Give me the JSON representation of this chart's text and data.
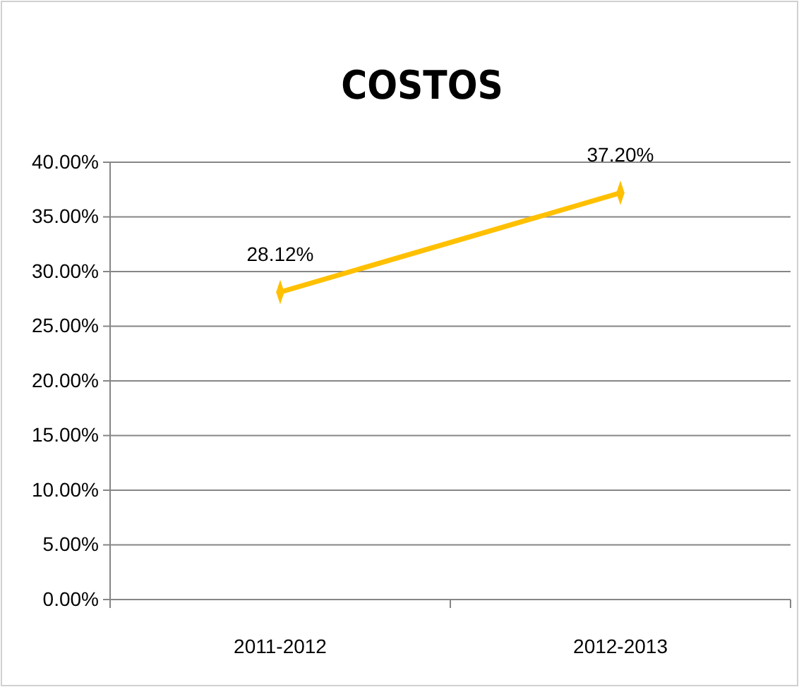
{
  "chart_data": {
    "type": "line",
    "title": "COSTOS",
    "categories": [
      "2011-2012",
      "2012-2013"
    ],
    "series": [
      {
        "color": "#ffc000",
        "values": [
          28.12,
          37.2
        ],
        "value_labels": [
          "28.12%",
          "37.20%"
        ]
      }
    ],
    "ylim": [
      0,
      40
    ],
    "yticks": [
      {
        "value": 0,
        "label": "0.00%"
      },
      {
        "value": 5,
        "label": "5.00%"
      },
      {
        "value": 10,
        "label": "10.00%"
      },
      {
        "value": 15,
        "label": "15.00%"
      },
      {
        "value": 20,
        "label": "20.00%"
      },
      {
        "value": 25,
        "label": "25.00%"
      },
      {
        "value": 30,
        "label": "30.00%"
      },
      {
        "value": 35,
        "label": "35.00%"
      },
      {
        "value": 40,
        "label": "40.00%"
      }
    ],
    "grid": "y",
    "marker": "diamond",
    "line_style": "solid"
  }
}
